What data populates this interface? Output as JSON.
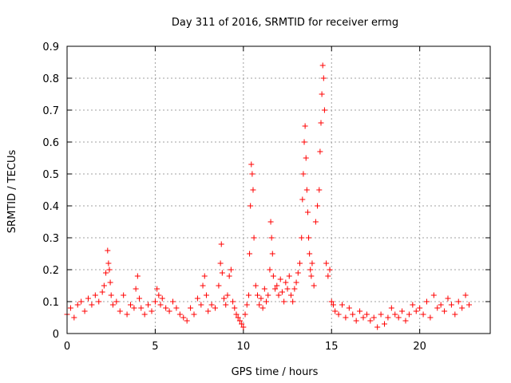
{
  "chart_data": {
    "type": "scatter",
    "title": "Day 311 of 2016, SRMTID for receiver ermg",
    "xlabel": "GPS time / hours",
    "ylabel": "SRMTID / TECUs",
    "xlim": [
      0,
      24
    ],
    "ylim": [
      0,
      0.9
    ],
    "xticks": [
      0,
      5,
      10,
      15,
      20
    ],
    "yticks": [
      0,
      0.1,
      0.2,
      0.3,
      0.4,
      0.5,
      0.6,
      0.7,
      0.8,
      0.9
    ],
    "grid": true,
    "marker": "+",
    "marker_color": "#ff0000",
    "series": [
      {
        "name": "SRMTID",
        "x": [
          0.0,
          0.2,
          0.4,
          0.6,
          0.8,
          1.0,
          1.2,
          1.4,
          1.6,
          1.8,
          2.0,
          2.1,
          2.2,
          2.3,
          2.35,
          2.4,
          2.45,
          2.5,
          2.6,
          2.8,
          3.0,
          3.2,
          3.4,
          3.6,
          3.8,
          3.9,
          4.0,
          4.1,
          4.2,
          4.4,
          4.6,
          4.8,
          5.0,
          5.1,
          5.2,
          5.3,
          5.4,
          5.6,
          5.8,
          6.0,
          6.2,
          6.4,
          6.6,
          6.8,
          7.0,
          7.2,
          7.4,
          7.6,
          7.7,
          7.8,
          7.9,
          8.0,
          8.2,
          8.4,
          8.6,
          8.7,
          8.75,
          8.8,
          8.9,
          9.0,
          9.1,
          9.2,
          9.3,
          9.4,
          9.5,
          9.6,
          9.7,
          9.8,
          9.9,
          10.0,
          10.1,
          10.2,
          10.3,
          10.35,
          10.4,
          10.45,
          10.5,
          10.55,
          10.6,
          10.7,
          10.8,
          10.9,
          11.0,
          11.1,
          11.2,
          11.3,
          11.4,
          11.5,
          11.55,
          11.6,
          11.65,
          11.7,
          11.8,
          11.9,
          12.0,
          12.1,
          12.2,
          12.3,
          12.4,
          12.5,
          12.6,
          12.7,
          12.8,
          12.9,
          13.0,
          13.1,
          13.2,
          13.3,
          13.35,
          13.4,
          13.45,
          13.5,
          13.55,
          13.6,
          13.65,
          13.7,
          13.75,
          13.8,
          13.85,
          13.9,
          14.0,
          14.1,
          14.2,
          14.3,
          14.35,
          14.4,
          14.45,
          14.5,
          14.55,
          14.6,
          14.7,
          14.8,
          14.9,
          15.0,
          15.1,
          15.2,
          15.4,
          15.6,
          15.8,
          16.0,
          16.2,
          16.4,
          16.6,
          16.8,
          17.0,
          17.2,
          17.4,
          17.6,
          17.8,
          18.0,
          18.2,
          18.4,
          18.6,
          18.8,
          19.0,
          19.2,
          19.4,
          19.6,
          19.8,
          20.0,
          20.2,
          20.4,
          20.6,
          20.8,
          21.0,
          21.2,
          21.4,
          21.6,
          21.8,
          22.0,
          22.2,
          22.4,
          22.6,
          22.8
        ],
        "y": [
          0.06,
          0.08,
          0.05,
          0.09,
          0.1,
          0.07,
          0.11,
          0.09,
          0.12,
          0.1,
          0.13,
          0.15,
          0.19,
          0.26,
          0.22,
          0.2,
          0.16,
          0.12,
          0.09,
          0.1,
          0.07,
          0.12,
          0.06,
          0.09,
          0.08,
          0.14,
          0.18,
          0.11,
          0.08,
          0.06,
          0.09,
          0.07,
          0.1,
          0.14,
          0.12,
          0.09,
          0.11,
          0.08,
          0.07,
          0.1,
          0.08,
          0.06,
          0.05,
          0.04,
          0.08,
          0.06,
          0.11,
          0.09,
          0.15,
          0.18,
          0.12,
          0.07,
          0.09,
          0.08,
          0.15,
          0.22,
          0.28,
          0.19,
          0.11,
          0.09,
          0.12,
          0.18,
          0.2,
          0.1,
          0.08,
          0.06,
          0.05,
          0.04,
          0.03,
          0.02,
          0.06,
          0.09,
          0.12,
          0.25,
          0.4,
          0.53,
          0.5,
          0.45,
          0.3,
          0.15,
          0.12,
          0.09,
          0.11,
          0.08,
          0.14,
          0.1,
          0.12,
          0.2,
          0.35,
          0.3,
          0.25,
          0.18,
          0.14,
          0.15,
          0.12,
          0.17,
          0.13,
          0.1,
          0.16,
          0.14,
          0.18,
          0.12,
          0.1,
          0.14,
          0.16,
          0.19,
          0.22,
          0.3,
          0.42,
          0.5,
          0.6,
          0.65,
          0.55,
          0.45,
          0.38,
          0.3,
          0.25,
          0.2,
          0.18,
          0.22,
          0.15,
          0.35,
          0.4,
          0.45,
          0.57,
          0.66,
          0.75,
          0.84,
          0.8,
          0.7,
          0.22,
          0.18,
          0.2,
          0.1,
          0.09,
          0.07,
          0.06,
          0.09,
          0.05,
          0.08,
          0.06,
          0.04,
          0.07,
          0.05,
          0.06,
          0.04,
          0.05,
          0.02,
          0.06,
          0.03,
          0.05,
          0.08,
          0.06,
          0.05,
          0.07,
          0.04,
          0.06,
          0.09,
          0.07,
          0.08,
          0.06,
          0.1,
          0.05,
          0.12,
          0.08,
          0.09,
          0.07,
          0.11,
          0.09,
          0.06,
          0.1,
          0.08,
          0.12,
          0.09
        ]
      }
    ]
  }
}
